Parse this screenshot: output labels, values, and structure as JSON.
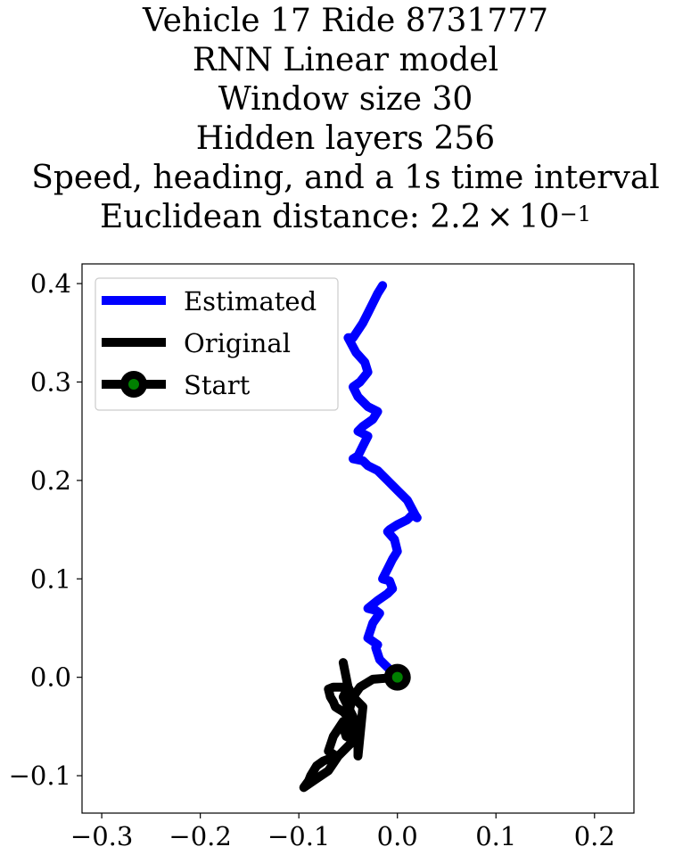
{
  "chart_data": {
    "type": "line",
    "title_lines": [
      "Vehicle 17 Ride 8731777",
      "RNN Linear model",
      "Window size 30",
      "Hidden layers 256",
      "Speed, heading, and a 1s time interval"
    ],
    "distance_label": "Euclidean distance: ",
    "distance_mantissa": "2.2",
    "distance_times": "×",
    "distance_base": "10",
    "distance_exponent": "−1",
    "xlim": [
      -0.32,
      0.24
    ],
    "ylim": [
      -0.138,
      0.42
    ],
    "xticks": [
      -0.3,
      -0.2,
      -0.1,
      0.0,
      0.1,
      0.2
    ],
    "xtick_labels": [
      "−0.3",
      "−0.2",
      "−0.1",
      "0.0",
      "0.1",
      "0.2"
    ],
    "yticks": [
      -0.1,
      0.0,
      0.1,
      0.2,
      0.3,
      0.4
    ],
    "ytick_labels": [
      "−0.1",
      "0.0",
      "0.1",
      "0.2",
      "0.3",
      "0.4"
    ],
    "grid": false,
    "legend_position": "upper-left",
    "series": [
      {
        "name": "Estimated",
        "color": "#0000ff",
        "x": [
          0.0,
          -0.01,
          -0.018,
          -0.022,
          -0.02,
          -0.03,
          -0.025,
          -0.018,
          -0.022,
          -0.03,
          -0.02,
          -0.01,
          -0.005,
          -0.008,
          -0.015,
          -0.01,
          -0.005,
          0.0,
          -0.003,
          -0.01,
          -0.008,
          0.0,
          0.01,
          0.015,
          0.02,
          0.018,
          0.01,
          0.0,
          -0.01,
          -0.02,
          -0.03,
          -0.035,
          -0.045,
          -0.04,
          -0.035,
          -0.03,
          -0.04,
          -0.035,
          -0.025,
          -0.02,
          -0.03,
          -0.04,
          -0.045,
          -0.038,
          -0.03,
          -0.033,
          -0.042,
          -0.05,
          -0.045,
          -0.035,
          -0.03,
          -0.025,
          -0.02,
          -0.015
        ],
        "y": [
          0.0,
          0.01,
          0.018,
          0.03,
          0.033,
          0.04,
          0.055,
          0.065,
          0.068,
          0.07,
          0.078,
          0.085,
          0.09,
          0.098,
          0.1,
          0.11,
          0.12,
          0.128,
          0.14,
          0.148,
          0.15,
          0.155,
          0.16,
          0.165,
          0.162,
          0.165,
          0.18,
          0.19,
          0.2,
          0.21,
          0.215,
          0.22,
          0.222,
          0.225,
          0.235,
          0.245,
          0.25,
          0.255,
          0.262,
          0.27,
          0.275,
          0.285,
          0.295,
          0.3,
          0.31,
          0.32,
          0.33,
          0.345,
          0.345,
          0.36,
          0.37,
          0.38,
          0.39,
          0.398
        ]
      },
      {
        "name": "Original",
        "color": "#000000",
        "x": [
          0.0,
          -0.025,
          -0.038,
          -0.045,
          -0.048,
          -0.05,
          -0.055,
          -0.052,
          -0.042,
          -0.038,
          -0.04,
          -0.055,
          -0.065,
          -0.07,
          -0.062,
          -0.075,
          -0.082,
          -0.088,
          -0.09,
          -0.095,
          -0.085,
          -0.07,
          -0.06,
          -0.05,
          -0.045,
          -0.04,
          -0.043,
          -0.045,
          -0.05,
          -0.055,
          -0.05,
          -0.06,
          -0.065,
          -0.07,
          -0.068,
          -0.065,
          -0.063,
          -0.06,
          -0.055,
          -0.05,
          -0.048,
          -0.045,
          -0.04,
          -0.04,
          -0.035,
          -0.045,
          -0.05,
          -0.055
        ],
        "y": [
          0.0,
          -0.002,
          -0.01,
          -0.02,
          -0.03,
          -0.04,
          -0.05,
          -0.06,
          -0.065,
          -0.055,
          -0.045,
          -0.045,
          -0.06,
          -0.075,
          -0.08,
          -0.085,
          -0.09,
          -0.1,
          -0.105,
          -0.112,
          -0.105,
          -0.095,
          -0.08,
          -0.07,
          -0.065,
          -0.06,
          -0.05,
          -0.04,
          -0.03,
          -0.02,
          -0.01,
          -0.01,
          -0.01,
          -0.012,
          -0.02,
          -0.025,
          -0.03,
          -0.032,
          -0.035,
          -0.04,
          -0.05,
          -0.06,
          -0.07,
          -0.08,
          -0.03,
          -0.02,
          -0.01,
          0.015
        ]
      }
    ],
    "start_point": {
      "name": "Start",
      "x": 0.0,
      "y": 0.0,
      "outer_color": "#000000",
      "inner_color": "#008000"
    }
  }
}
